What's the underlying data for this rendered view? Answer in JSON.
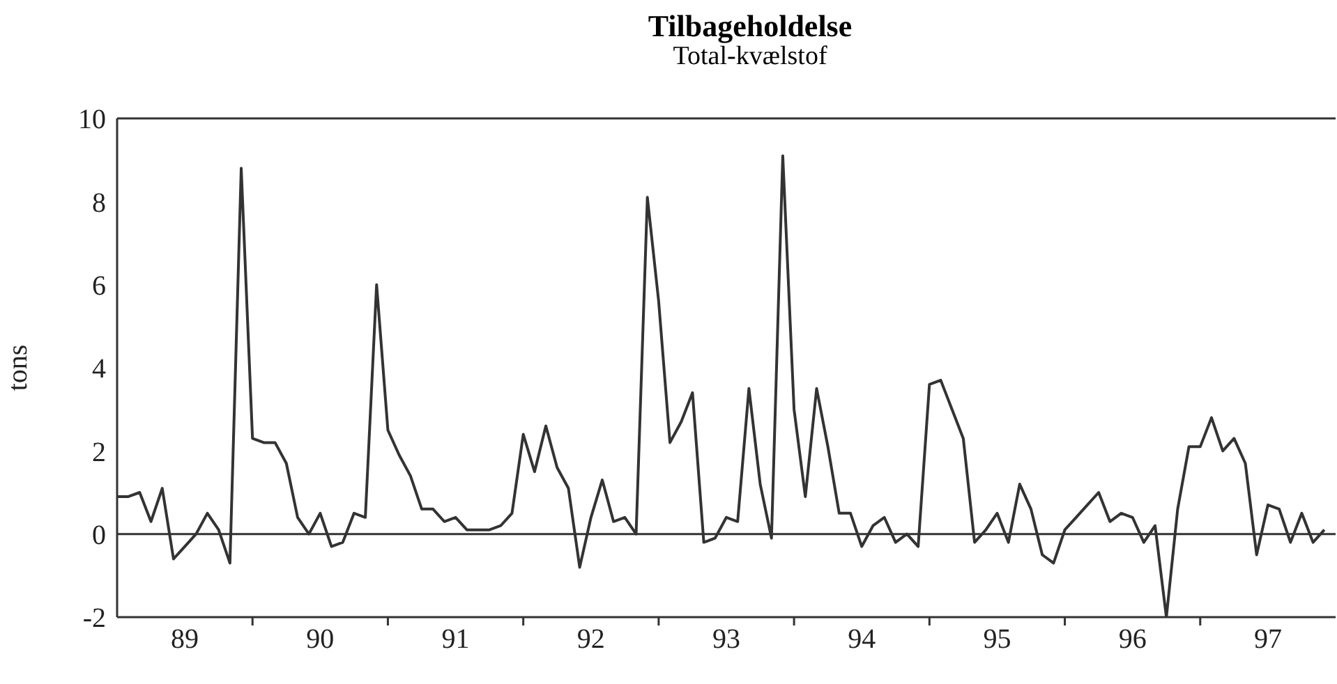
{
  "chart_data": {
    "type": "line",
    "title": "Tilbageholdelse",
    "subtitle": "Total-kvælstof",
    "ylabel": "tons",
    "x": [
      "1989-01",
      "1989-02",
      "1989-03",
      "1989-04",
      "1989-05",
      "1989-06",
      "1989-07",
      "1989-08",
      "1989-09",
      "1989-10",
      "1989-11",
      "1989-12",
      "1990-01",
      "1990-02",
      "1990-03",
      "1990-04",
      "1990-05",
      "1990-06",
      "1990-07",
      "1990-08",
      "1990-09",
      "1990-10",
      "1990-11",
      "1990-12",
      "1991-01",
      "1991-02",
      "1991-03",
      "1991-04",
      "1991-05",
      "1991-06",
      "1991-07",
      "1991-08",
      "1991-09",
      "1991-10",
      "1991-11",
      "1991-12",
      "1992-01",
      "1992-02",
      "1992-03",
      "1992-04",
      "1992-05",
      "1992-06",
      "1992-07",
      "1992-08",
      "1992-09",
      "1992-10",
      "1992-11",
      "1992-12",
      "1993-01",
      "1993-02",
      "1993-03",
      "1993-04",
      "1993-05",
      "1993-06",
      "1993-07",
      "1993-08",
      "1993-09",
      "1993-10",
      "1993-11",
      "1993-12",
      "1994-01",
      "1994-02",
      "1994-03",
      "1994-04",
      "1994-05",
      "1994-06",
      "1994-07",
      "1994-08",
      "1994-09",
      "1994-10",
      "1994-11",
      "1994-12",
      "1995-01",
      "1995-02",
      "1995-03",
      "1995-04",
      "1995-05",
      "1995-06",
      "1995-07",
      "1995-08",
      "1995-09",
      "1995-10",
      "1995-11",
      "1995-12",
      "1996-01",
      "1996-02",
      "1996-03",
      "1996-04",
      "1996-05",
      "1996-06",
      "1996-07",
      "1996-08",
      "1996-09",
      "1996-10",
      "1996-11",
      "1996-12",
      "1997-01",
      "1997-02",
      "1997-03",
      "1997-04",
      "1997-05",
      "1997-06",
      "1997-07",
      "1997-08",
      "1997-09",
      "1997-10",
      "1997-11",
      "1997-12"
    ],
    "series": [
      {
        "color": "#333333",
        "values": [
          0.9,
          0.9,
          1.0,
          0.3,
          1.1,
          -0.6,
          -0.3,
          0.0,
          0.5,
          0.1,
          -0.7,
          8.8,
          2.3,
          2.2,
          2.2,
          1.7,
          0.4,
          0.0,
          0.5,
          -0.3,
          -0.2,
          0.5,
          0.4,
          6.0,
          2.5,
          1.9,
          1.4,
          0.6,
          0.6,
          0.3,
          0.4,
          0.1,
          0.1,
          0.1,
          0.2,
          0.5,
          2.4,
          1.5,
          2.6,
          1.6,
          1.1,
          -0.8,
          0.4,
          1.3,
          0.3,
          0.4,
          0.0,
          8.1,
          5.6,
          2.2,
          2.7,
          3.4,
          -0.2,
          -0.1,
          0.4,
          0.3,
          3.5,
          1.2,
          -0.1,
          9.1,
          3.0,
          0.9,
          3.5,
          2.1,
          0.5,
          0.5,
          -0.3,
          0.2,
          0.4,
          -0.2,
          0.0,
          -0.3,
          3.6,
          3.7,
          3.0,
          2.3,
          -0.2,
          0.1,
          0.5,
          -0.2,
          1.2,
          0.6,
          -0.5,
          -0.7,
          0.1,
          0.4,
          0.7,
          1.0,
          0.3,
          0.5,
          0.4,
          -0.2,
          0.2,
          -2.0,
          0.6,
          2.1,
          2.1,
          2.8,
          2.0,
          2.3,
          1.7,
          -0.5,
          0.7,
          0.6,
          -0.2,
          0.5,
          -0.2,
          0.1
        ]
      }
    ],
    "xlim": [
      "1989-01",
      "1998-01"
    ],
    "xticks": [
      {
        "value": "1989-07",
        "label": "89"
      },
      {
        "value": "1990-01",
        "label": null
      },
      {
        "value": "1990-07",
        "label": "90"
      },
      {
        "value": "1991-01",
        "label": null
      },
      {
        "value": "1991-07",
        "label": "91"
      },
      {
        "value": "1992-01",
        "label": null
      },
      {
        "value": "1992-07",
        "label": "92"
      },
      {
        "value": "1993-01",
        "label": null
      },
      {
        "value": "1993-07",
        "label": "93"
      },
      {
        "value": "1994-01",
        "label": null
      },
      {
        "value": "1994-07",
        "label": "94"
      },
      {
        "value": "1995-01",
        "label": null
      },
      {
        "value": "1995-07",
        "label": "95"
      },
      {
        "value": "1996-01",
        "label": null
      },
      {
        "value": "1996-07",
        "label": "96"
      },
      {
        "value": "1997-01",
        "label": null
      },
      {
        "value": "1997-07",
        "label": "97"
      }
    ],
    "ylim": [
      -2,
      10
    ],
    "yticks": [
      -2,
      0,
      2,
      4,
      6,
      8,
      10
    ],
    "ref_lines": [
      {
        "axis": "y",
        "value": 0,
        "color": "#333333"
      }
    ],
    "grid": false,
    "legend": false,
    "marker": "none",
    "line_style": "solid"
  }
}
